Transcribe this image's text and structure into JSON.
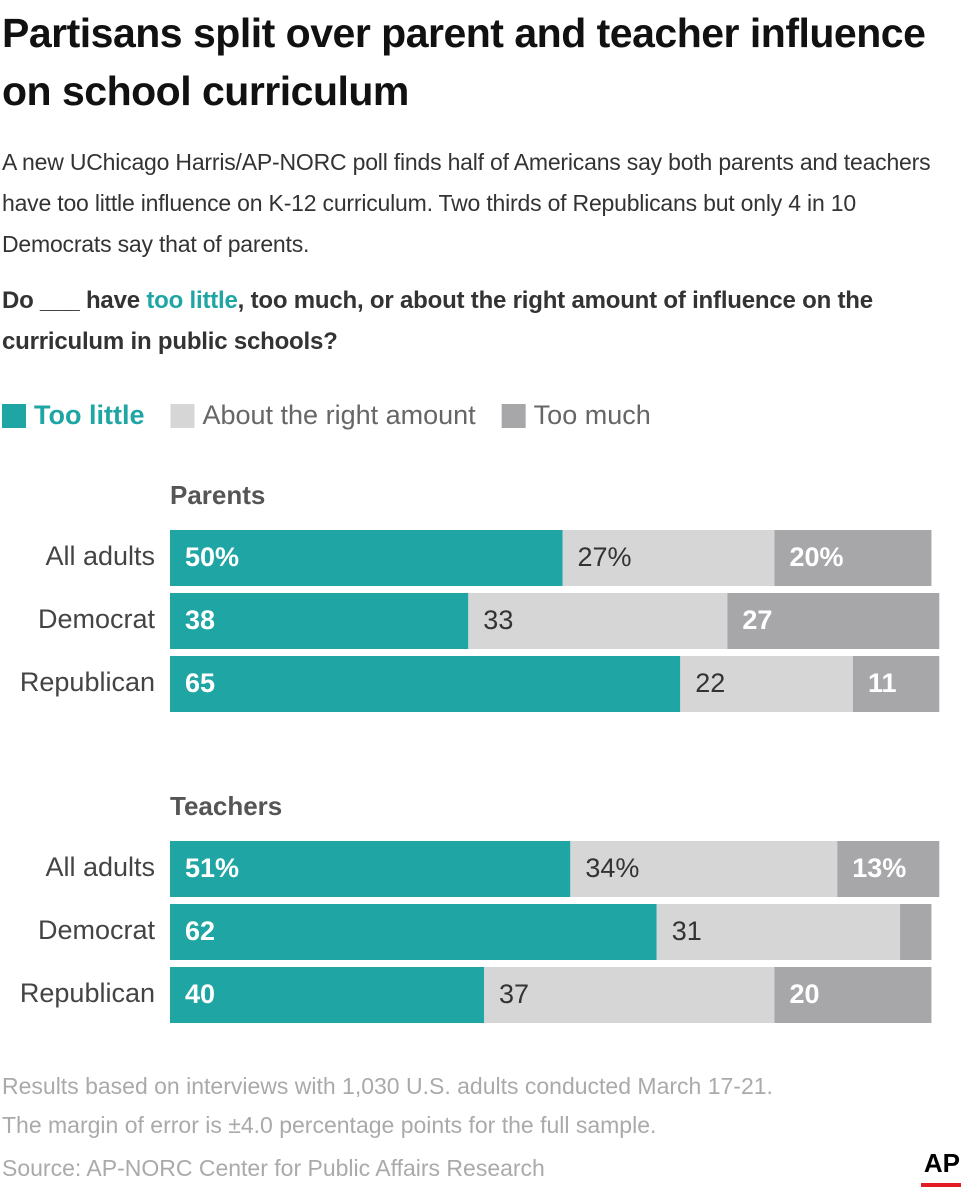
{
  "title": "Partisans split over parent and teacher influence on school curriculum",
  "subtitle": "A new UChicago Harris/AP-NORC poll finds half of Americans say both parents and teachers have too little influence on K-12 curriculum. Two thirds of Republicans but only 4 in 10 Democrats say that of parents.",
  "question": [
    "Do ___ have ",
    "too little",
    ", too much, or about the right amount of influence on the curriculum in public schools?"
  ],
  "notes": [
    "Results based on interviews with 1,030 U.S. adults conducted March 17-21.",
    "The margin of error is ±4.0 percentage points for the full sample."
  ],
  "source": "Source: AP-NORC Center for Public Affairs Research",
  "logo": "AP",
  "chart_data": [
    {
      "type": "bar",
      "orientation": "horizontal",
      "stacked": true,
      "title": "Parents",
      "categories": [
        "All adults",
        "Democrat",
        "Republican"
      ],
      "xlim": [
        0,
        100
      ],
      "series": [
        {
          "name": "Too little",
          "color": "#20a5a5",
          "values": [
            50,
            38,
            65
          ],
          "value_labels": [
            "50%",
            "38",
            "65"
          ]
        },
        {
          "name": "About the right amount",
          "color": "#d6d6d6",
          "values": [
            27,
            33,
            22
          ],
          "value_labels": [
            "27%",
            "33",
            "22"
          ]
        },
        {
          "name": "Too much",
          "color": "#a7a7a9",
          "values": [
            20,
            27,
            11
          ],
          "value_labels": [
            "20%",
            "27",
            "11"
          ]
        }
      ]
    },
    {
      "type": "bar",
      "orientation": "horizontal",
      "stacked": true,
      "title": "Teachers",
      "categories": [
        "All adults",
        "Democrat",
        "Republican"
      ],
      "xlim": [
        0,
        100
      ],
      "series": [
        {
          "color": "#20a5a5",
          "values": [
            51,
            62,
            40
          ],
          "value_labels": [
            "51%",
            "62",
            "40"
          ]
        },
        {
          "color": "#d6d6d6",
          "values": [
            34,
            31,
            37
          ],
          "value_labels": [
            "34%",
            "31",
            "37"
          ]
        },
        {
          "color": "#a7a7a9",
          "values": [
            13,
            4,
            20
          ],
          "value_labels": [
            "13%",
            null,
            "20"
          ]
        }
      ]
    }
  ]
}
